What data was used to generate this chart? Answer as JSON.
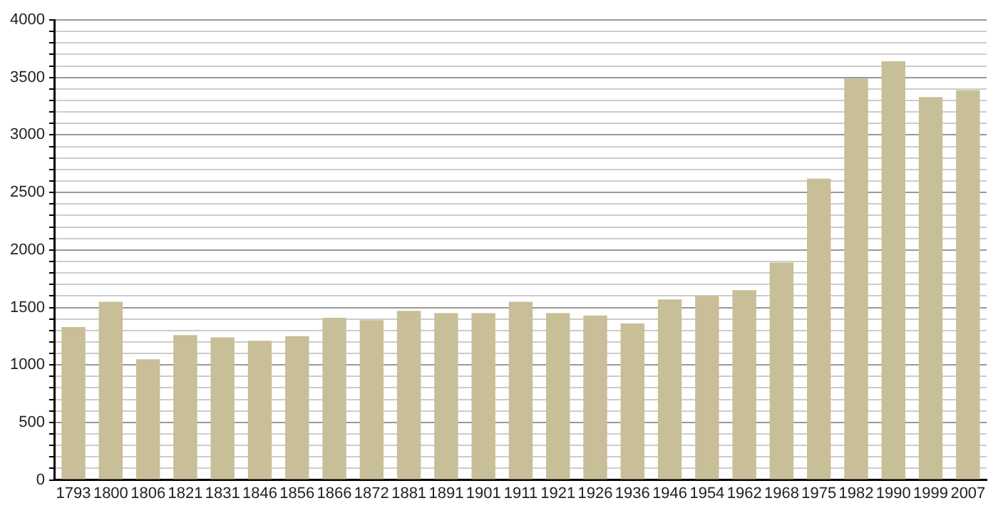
{
  "chart_data": {
    "type": "bar",
    "categories": [
      "1793",
      "1800",
      "1806",
      "1821",
      "1831",
      "1846",
      "1856",
      "1866",
      "1872",
      "1881",
      "1891",
      "1901",
      "1911",
      "1921",
      "1926",
      "1936",
      "1946",
      "1954",
      "1962",
      "1968",
      "1975",
      "1982",
      "1990",
      "1999",
      "2007"
    ],
    "values": [
      1330,
      1550,
      1050,
      1260,
      1240,
      1210,
      1250,
      1410,
      1390,
      1470,
      1450,
      1450,
      1550,
      1450,
      1430,
      1360,
      1570,
      1600,
      1650,
      1890,
      2620,
      3490,
      3640,
      3330,
      3390
    ],
    "color": "#c8bf98",
    "ylim": [
      0,
      4000
    ],
    "yticks": [
      0,
      {
        "value": 100,
        "label": null
      },
      {
        "value": 200,
        "label": null
      },
      {
        "value": 300,
        "label": null
      },
      {
        "value": 400,
        "label": null
      },
      500,
      {
        "value": 600,
        "label": null
      },
      {
        "value": 700,
        "label": null
      },
      {
        "value": 800,
        "label": null
      },
      {
        "value": 900,
        "label": null
      },
      1000,
      {
        "value": 1100,
        "label": null
      },
      {
        "value": 1200,
        "label": null
      },
      {
        "value": 1300,
        "label": null
      },
      {
        "value": 1400,
        "label": null
      },
      1500,
      {
        "value": 1600,
        "label": null
      },
      {
        "value": 1700,
        "label": null
      },
      {
        "value": 1800,
        "label": null
      },
      {
        "value": 1900,
        "label": null
      },
      2000,
      {
        "value": 2100,
        "label": null
      },
      {
        "value": 2200,
        "label": null
      },
      {
        "value": 2300,
        "label": null
      },
      {
        "value": 2400,
        "label": null
      },
      2500,
      {
        "value": 2600,
        "label": null
      },
      {
        "value": 2700,
        "label": null
      },
      {
        "value": 2800,
        "label": null
      },
      {
        "value": 2900,
        "label": null
      },
      3000,
      {
        "value": 3100,
        "label": null
      },
      {
        "value": 3200,
        "label": null
      },
      {
        "value": 3300,
        "label": null
      },
      {
        "value": 3400,
        "label": null
      },
      3500,
      {
        "value": 3600,
        "label": null
      },
      {
        "value": 3700,
        "label": null
      },
      {
        "value": 3800,
        "label": null
      },
      {
        "value": 3900,
        "label": null
      },
      4000
    ],
    "grid": "y",
    "legend": false
  }
}
